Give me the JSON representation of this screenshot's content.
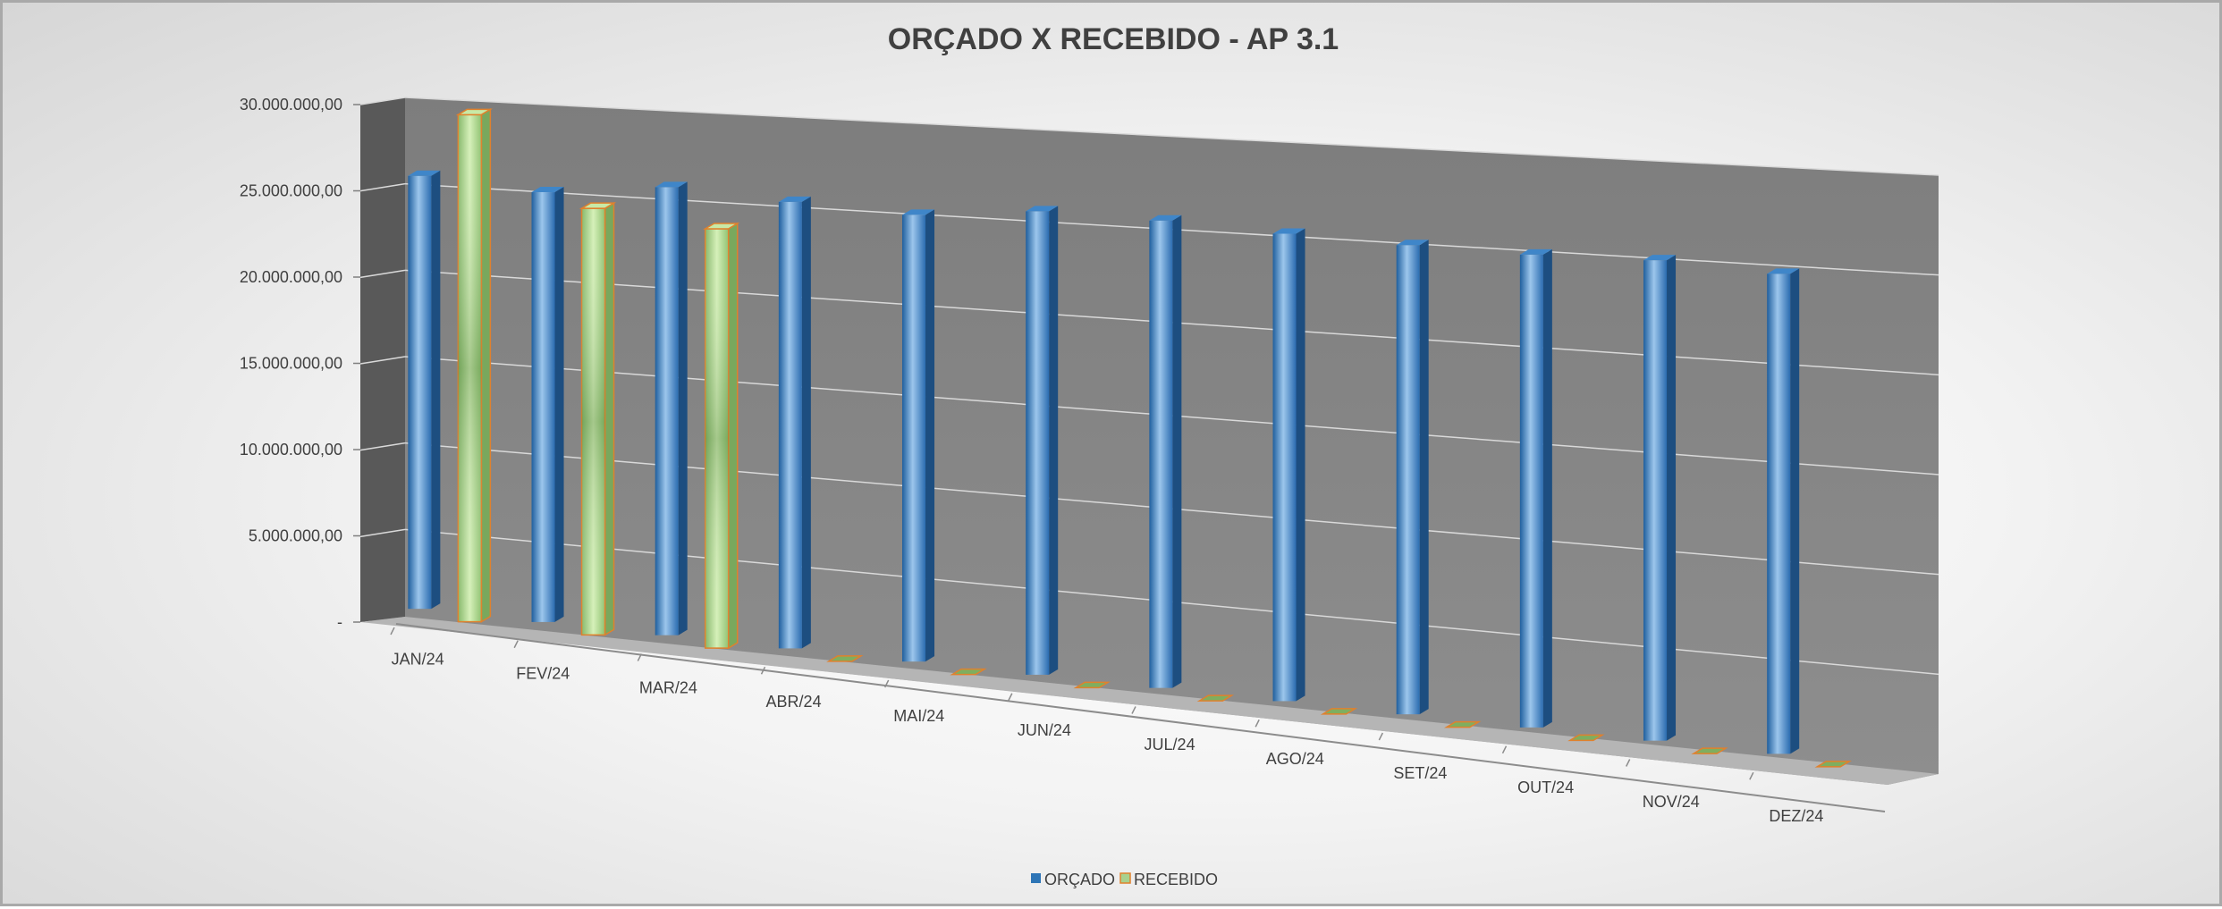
{
  "chart_data": {
    "type": "bar",
    "title": "ORÇADO X RECEBIDO - AP 3.1",
    "categories": [
      "JAN/24",
      "FEV/24",
      "MAR/24",
      "ABR/24",
      "MAI/24",
      "JUN/24",
      "JUL/24",
      "AGO/24",
      "SET/24",
      "OUT/24",
      "NOV/24",
      "DEZ/24"
    ],
    "series": [
      {
        "name": "ORÇADO",
        "color": "#2e75b6",
        "values": [
          25400000,
          24900000,
          25600000,
          25200000,
          24900000,
          25500000,
          25400000,
          25100000,
          24900000,
          24800000,
          24900000,
          24600000
        ]
      },
      {
        "name": "RECEBIDO",
        "color": "#a9d18e",
        "border": "#e0812d",
        "values": [
          28900000,
          24000000,
          23300000,
          0,
          0,
          0,
          0,
          0,
          0,
          0,
          0,
          0
        ]
      }
    ],
    "yticks": [
      "-",
      "5.000.000,00",
      "10.000.000,00",
      "15.000.000,00",
      "20.000.000,00",
      "25.000.000,00",
      "30.000.000,00"
    ],
    "ylim": [
      0,
      30000000
    ],
    "grid": true,
    "legend": "bottom",
    "style": "3d-perspective"
  }
}
